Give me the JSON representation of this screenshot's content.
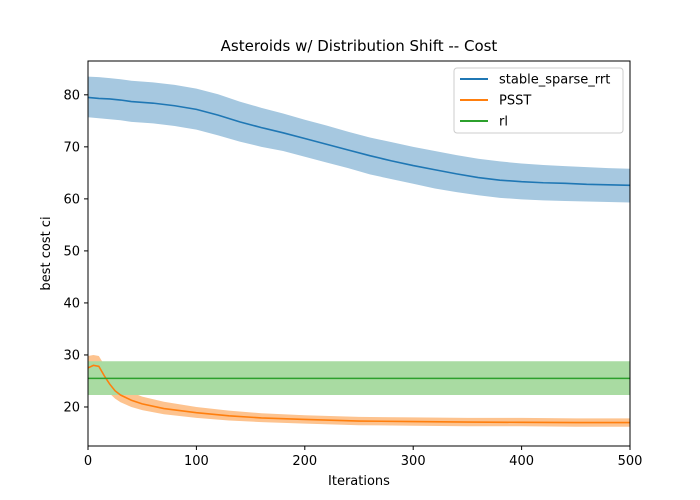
{
  "chart_data": {
    "type": "line",
    "title": "Asteroids w/ Distribution Shift -- Cost",
    "xlabel": "Iterations",
    "ylabel": "best cost ci",
    "xlim": [
      0,
      500
    ],
    "ylim": [
      12.5,
      86.5
    ],
    "xticks": [
      0,
      100,
      200,
      300,
      400,
      500
    ],
    "yticks": [
      20,
      30,
      40,
      50,
      60,
      70,
      80
    ],
    "grid": false,
    "legend_position": "top-right",
    "series": [
      {
        "name": "stable_sparse_rrt",
        "color": "#1f77b4",
        "band_color": "#a6c8e0",
        "x": [
          0,
          10,
          20,
          30,
          40,
          60,
          80,
          100,
          120,
          140,
          160,
          180,
          200,
          220,
          240,
          260,
          280,
          300,
          320,
          340,
          360,
          380,
          400,
          420,
          440,
          460,
          480,
          500
        ],
        "y": [
          79.5,
          79.3,
          79.2,
          79.0,
          78.7,
          78.4,
          77.9,
          77.2,
          76.1,
          74.8,
          73.7,
          72.7,
          71.6,
          70.5,
          69.4,
          68.3,
          67.3,
          66.4,
          65.6,
          64.8,
          64.1,
          63.6,
          63.3,
          63.1,
          63.0,
          62.8,
          62.7,
          62.6
        ],
        "lower": [
          75.7,
          75.5,
          75.3,
          75.1,
          74.8,
          74.5,
          74.0,
          73.3,
          72.2,
          71.0,
          70.0,
          69.2,
          68.1,
          67.0,
          65.9,
          64.7,
          63.8,
          62.9,
          62.0,
          61.3,
          60.7,
          60.2,
          59.9,
          59.7,
          59.6,
          59.5,
          59.4,
          59.3
        ],
        "upper": [
          83.5,
          83.4,
          83.2,
          83.0,
          82.7,
          82.4,
          81.9,
          81.2,
          80.1,
          78.7,
          77.5,
          76.4,
          75.2,
          74.1,
          72.9,
          71.8,
          70.9,
          70.0,
          69.2,
          68.4,
          67.7,
          67.2,
          66.8,
          66.5,
          66.3,
          66.1,
          65.9,
          65.8
        ]
      },
      {
        "name": "PSST",
        "color": "#ff7f0e",
        "band_color": "#fdc38f",
        "x": [
          0,
          5,
          10,
          15,
          20,
          25,
          30,
          40,
          50,
          70,
          100,
          130,
          160,
          200,
          250,
          300,
          350,
          400,
          450,
          500
        ],
        "y": [
          27.5,
          28.0,
          27.8,
          26.0,
          24.4,
          23.1,
          22.3,
          21.3,
          20.6,
          19.7,
          18.9,
          18.3,
          17.9,
          17.6,
          17.3,
          17.2,
          17.1,
          17.05,
          17.0,
          17.0
        ],
        "lower": [
          25.0,
          25.4,
          25.3,
          23.8,
          22.6,
          21.6,
          20.9,
          20.0,
          19.4,
          18.6,
          17.9,
          17.4,
          17.1,
          16.8,
          16.5,
          16.4,
          16.3,
          16.3,
          16.2,
          16.2
        ],
        "upper": [
          29.8,
          30.0,
          29.8,
          28.1,
          26.3,
          24.8,
          23.9,
          22.8,
          22.0,
          21.0,
          20.0,
          19.3,
          18.8,
          18.4,
          18.1,
          18.0,
          17.9,
          17.9,
          17.8,
          17.8
        ]
      },
      {
        "name": "rl",
        "color": "#2ca02c",
        "band_color": "#a9dba2",
        "x": [
          0,
          500
        ],
        "y": [
          25.5,
          25.5
        ],
        "lower": [
          22.3,
          22.3
        ],
        "upper": [
          28.8,
          28.8
        ]
      }
    ]
  }
}
